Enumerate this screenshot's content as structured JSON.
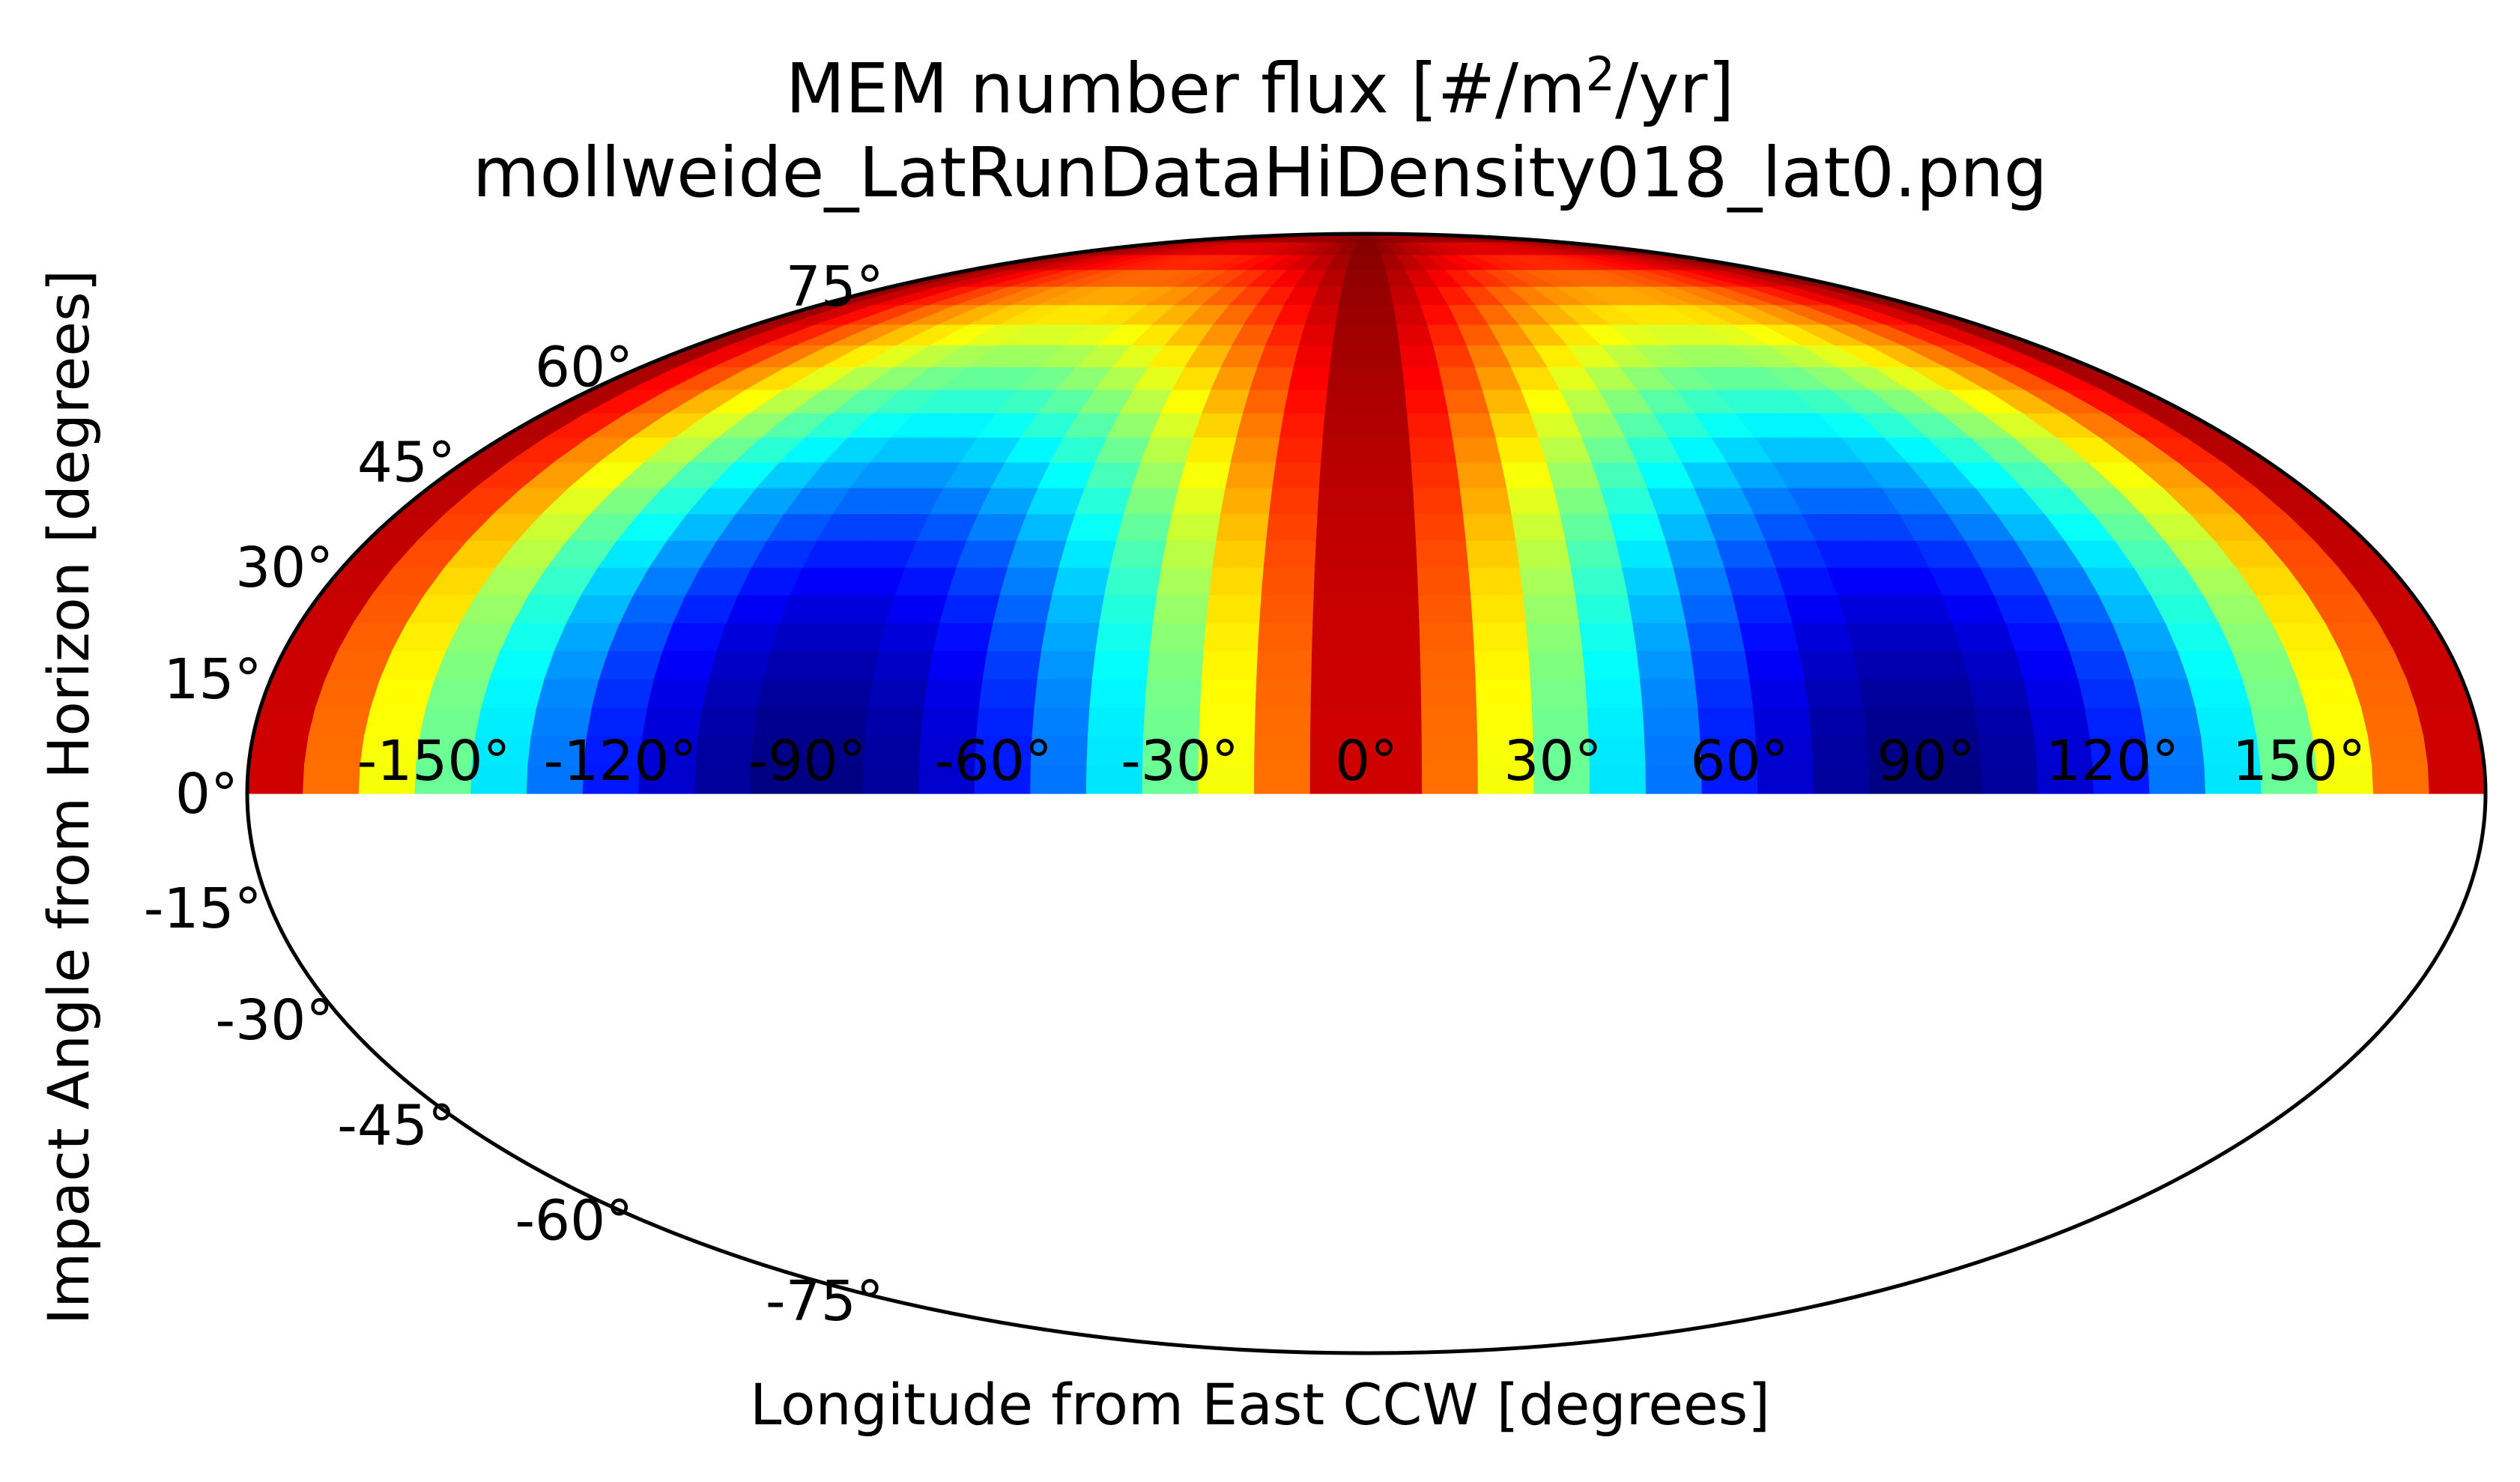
{
  "chart_data": {
    "type": "heatmap",
    "projection": "mollweide",
    "title_prefix": "MEM number flux [#/m",
    "title_sup": "2",
    "title_suffix": "/yr]",
    "subtitle": "mollweide_LatRunDataHiDensity018_lat0.png",
    "xlabel": "Longitude from East CCW [degrees]",
    "ylabel": "Impact Angle from Horizon [degrees]",
    "colormap": "jet",
    "grid": false,
    "colorbar": false,
    "x_ticks": [
      {
        "value": -150,
        "label": "-150°"
      },
      {
        "value": -120,
        "label": "-120°"
      },
      {
        "value": -90,
        "label": "-90°"
      },
      {
        "value": -60,
        "label": "-60°"
      },
      {
        "value": -30,
        "label": "-30°"
      },
      {
        "value": 0,
        "label": "0°"
      },
      {
        "value": 30,
        "label": "30°"
      },
      {
        "value": 60,
        "label": "60°"
      },
      {
        "value": 90,
        "label": "90°"
      },
      {
        "value": 120,
        "label": "120°"
      },
      {
        "value": 150,
        "label": "150°"
      }
    ],
    "y_ticks": [
      {
        "value": 75,
        "label": "75°"
      },
      {
        "value": 60,
        "label": "60°"
      },
      {
        "value": 45,
        "label": "45°"
      },
      {
        "value": 30,
        "label": "30°"
      },
      {
        "value": 15,
        "label": "15°"
      },
      {
        "value": 0,
        "label": "0°"
      },
      {
        "value": -15,
        "label": "-15°"
      },
      {
        "value": -30,
        "label": "-30°"
      },
      {
        "value": -45,
        "label": "-45°"
      },
      {
        "value": -60,
        "label": "-60°"
      },
      {
        "value": -75,
        "label": "-75°"
      }
    ],
    "xlim": [
      -180,
      180
    ],
    "ylim": [
      -90,
      90
    ],
    "data_lat_range": [
      0,
      90
    ],
    "lon_step": 9,
    "lat_step": 3.75,
    "color_min_note": "deep blue minimum near longitude ±90°, latitude 0°; dark red maximum near longitude 0° and at the outer edges (±180°)",
    "normalized_level_model": "level = 1 - cos(lat) * |sin(lon)|"
  }
}
